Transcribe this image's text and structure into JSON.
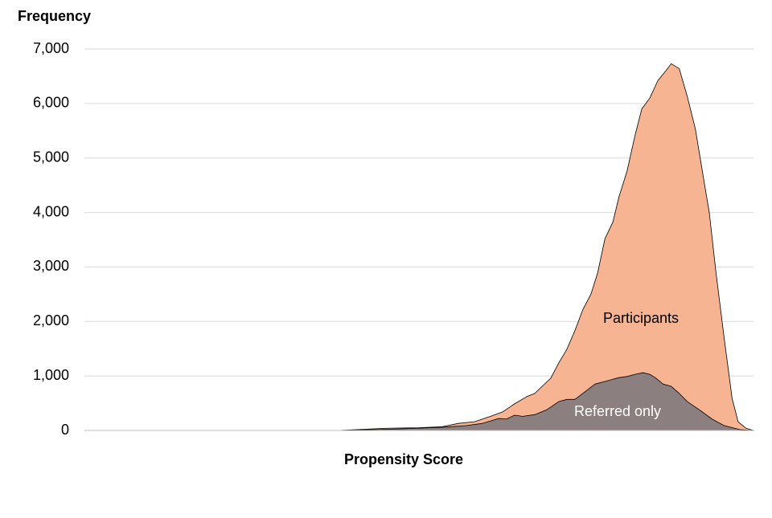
{
  "chart_data": {
    "type": "area",
    "y_label": "Frequency",
    "x_label": "Propensity Score",
    "xlim": [
      0,
      1
    ],
    "ylim": [
      0,
      7000
    ],
    "yticks": [
      0,
      {
        "value": 1000,
        "label": "1,000"
      },
      {
        "value": 2000,
        "label": "2,000"
      },
      {
        "value": 3000,
        "label": "3,000"
      },
      {
        "value": 4000,
        "label": "4,000"
      },
      {
        "value": 5000,
        "label": "5,000"
      },
      {
        "value": 6000,
        "label": "6,000"
      },
      {
        "value": 7000,
        "label": "7,000"
      }
    ],
    "grid": true,
    "series": [
      {
        "name": "Participants",
        "color": "#f7b492",
        "x": [
          0.088,
          0.379,
          0.451,
          0.499,
          0.535,
          0.559,
          0.583,
          0.607,
          0.625,
          0.643,
          0.661,
          0.673,
          0.685,
          0.697,
          0.709,
          0.721,
          0.733,
          0.745,
          0.757,
          0.767,
          0.778,
          0.79,
          0.799,
          0.811,
          0.823,
          0.833,
          0.845,
          0.857,
          0.869,
          0.877,
          0.889,
          0.901,
          0.913,
          0.925,
          0.934,
          0.944,
          0.956,
          0.968,
          0.977,
          0.989,
          1.0
        ],
        "values": [
          0,
          0,
          40,
          50,
          70,
          130,
          160,
          260,
          340,
          490,
          620,
          680,
          820,
          960,
          1240,
          1490,
          1830,
          2220,
          2500,
          2890,
          3520,
          3830,
          4290,
          4760,
          5420,
          5900,
          6100,
          6420,
          6600,
          6730,
          6640,
          6130,
          5540,
          4650,
          3990,
          2890,
          1710,
          590,
          160,
          40,
          0
        ]
      },
      {
        "name": "Referred only",
        "color": "#8b7f7f",
        "x": [
          0.088,
          0.379,
          0.475,
          0.535,
          0.571,
          0.595,
          0.619,
          0.631,
          0.643,
          0.655,
          0.673,
          0.691,
          0.709,
          0.721,
          0.733,
          0.745,
          0.763,
          0.781,
          0.799,
          0.811,
          0.823,
          0.835,
          0.845,
          0.853,
          0.865,
          0.877,
          0.889,
          0.901,
          0.919,
          0.938,
          0.956,
          0.98,
          1.0
        ],
        "values": [
          0,
          0,
          30,
          60,
          90,
          130,
          220,
          210,
          280,
          260,
          290,
          380,
          530,
          570,
          570,
          680,
          850,
          910,
          970,
          990,
          1030,
          1060,
          1030,
          970,
          850,
          810,
          680,
          530,
          380,
          210,
          90,
          15,
          0
        ]
      }
    ]
  }
}
